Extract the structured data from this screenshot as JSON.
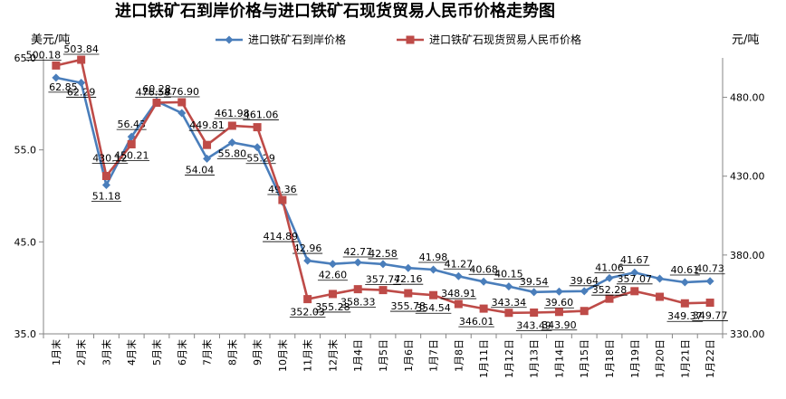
{
  "chart_data": {
    "type": "line",
    "title": "进口铁矿石到岸价格与进口铁矿石现货贸易人民币价格走势图",
    "ylabel_left": "美元/吨",
    "ylabel_right": "元/吨",
    "ylim_left": [
      35.0,
      65.0
    ],
    "ylim_right": [
      330.0,
      505.0
    ],
    "yticks_left": [
      "35.0",
      "45.0",
      "55.0",
      "65.0"
    ],
    "yticks_right": [
      "330.00",
      "380.00",
      "430.00",
      "480.00"
    ],
    "yticks_left_values": [
      35,
      45,
      55,
      65
    ],
    "yticks_right_values": [
      330,
      380,
      430,
      480
    ],
    "legend_position": "top",
    "grid": false,
    "categories": [
      "1月末",
      "2月末",
      "3月末",
      "4月末",
      "5月末",
      "6月末",
      "7月末",
      "8月末",
      "9月末",
      "10月末",
      "11月末",
      "12月末",
      "1月4日",
      "1月5日",
      "1月6日",
      "1月7日",
      "1月8日",
      "1月11日",
      "1月12日",
      "1月13日",
      "1月14日",
      "1月15日",
      "1月18日",
      "1月19日",
      "1月20日",
      "1月21日",
      "1月22日"
    ],
    "series": [
      {
        "name": "进口铁矿石到岸价格",
        "axis": "left",
        "color": "#4A7EBB",
        "marker": "diamond",
        "values": [
          62.85,
          62.29,
          51.18,
          56.43,
          60.28,
          59.0,
          54.04,
          55.8,
          55.29,
          49.36,
          42.96,
          42.6,
          42.77,
          42.58,
          42.16,
          41.98,
          41.27,
          40.68,
          40.15,
          39.54,
          39.6,
          39.64,
          41.06,
          41.67,
          41.0,
          40.61,
          40.73
        ],
        "labels": [
          "62.85",
          "62.29",
          "51.18",
          "56.43",
          "60.28",
          "",
          "54.04",
          "55.80",
          "55.29",
          "49.36",
          "42.96",
          "42.60",
          "42.77",
          "42.58",
          "42.16",
          "41.98",
          "41.27",
          "40.68",
          "40.15",
          "39.54",
          "39.60",
          "39.64",
          "41.06",
          "41.67",
          "",
          "40.61",
          "40.73"
        ]
      },
      {
        "name": "进口铁矿石现货贸易人民币价格",
        "axis": "right",
        "color": "#BE4B48",
        "marker": "square",
        "values": [
          500.18,
          503.84,
          430.12,
          450.21,
          476.58,
          476.9,
          449.81,
          461.98,
          461.06,
          414.89,
          352.03,
          355.28,
          358.33,
          357.77,
          355.78,
          354.54,
          348.91,
          346.01,
          343.34,
          343.49,
          343.9,
          344.5,
          352.28,
          357.07,
          353.5,
          349.37,
          349.77
        ],
        "labels": [
          "500.18",
          "503.84",
          "430.12",
          "450.21",
          "476.58",
          "476.90",
          "449.81",
          "461.98",
          "461.06",
          "414.89",
          "352.03",
          "355.28",
          "358.33",
          "357.77",
          "355.78",
          "354.54",
          "348.91",
          "346.01",
          "343.34",
          "343.49",
          "343.90",
          "",
          "352.28",
          "357.07",
          "",
          "349.37",
          "349.77"
        ]
      }
    ]
  }
}
